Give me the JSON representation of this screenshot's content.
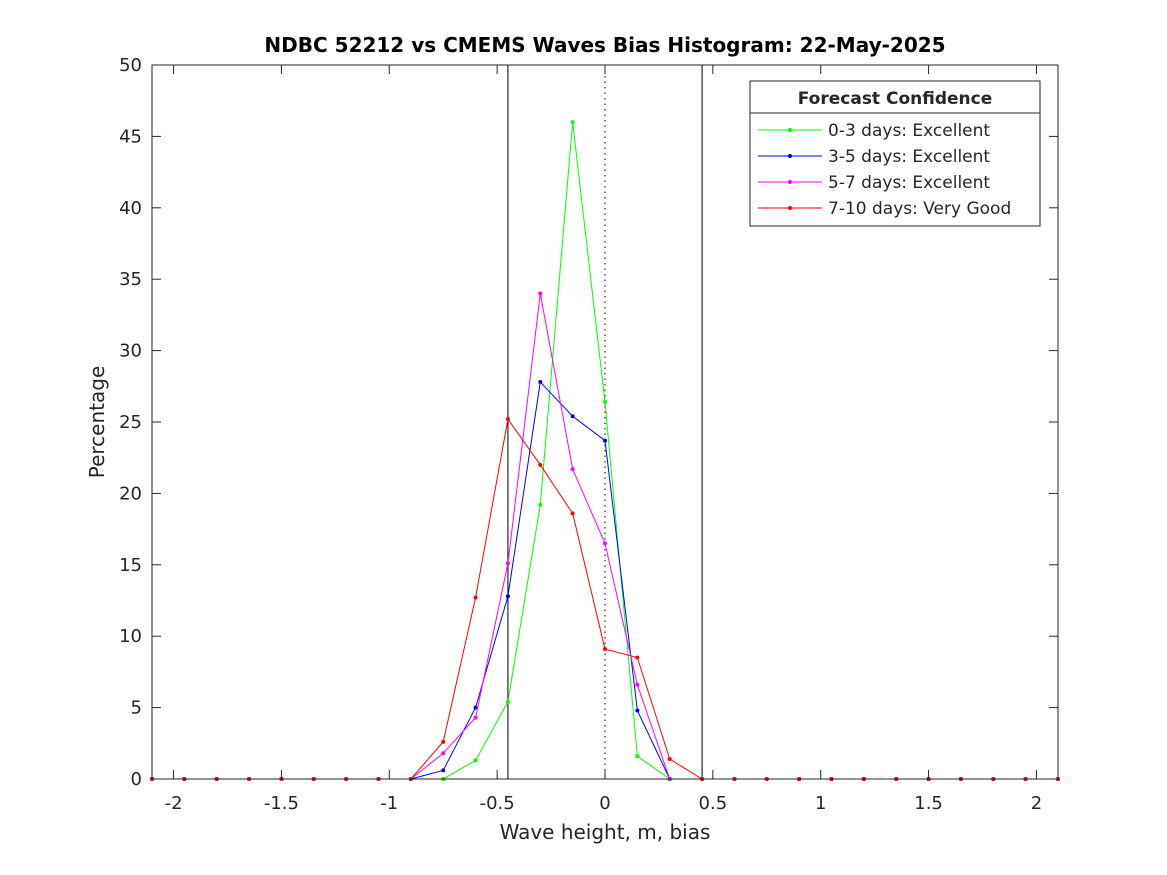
{
  "chart_data": {
    "type": "line",
    "title": "NDBC 52212 vs CMEMS Waves Bias Histogram: 22-May-2025",
    "xlabel": "Wave height, m, bias",
    "ylabel": "Percentage",
    "xlim": [
      -2.1,
      2.1
    ],
    "ylim": [
      0,
      50
    ],
    "xticks": [
      -2,
      -1.5,
      -1,
      -0.5,
      0,
      0.5,
      1,
      1.5,
      2
    ],
    "xtick_labels": [
      "-2",
      "-1.5",
      "-1",
      "-0.5",
      "0",
      "0.5",
      "1",
      "1.5",
      "2"
    ],
    "yticks": [
      0,
      5,
      10,
      15,
      20,
      25,
      30,
      35,
      40,
      45,
      50
    ],
    "ytick_labels": [
      "0",
      "5",
      "10",
      "15",
      "20",
      "25",
      "30",
      "35",
      "40",
      "45",
      "50"
    ],
    "reference_lines": [
      {
        "x": -0.45,
        "style": "solid"
      },
      {
        "x": 0,
        "style": "dotted"
      },
      {
        "x": 0.45,
        "style": "solid"
      }
    ],
    "legend_title": "Forecast Confidence",
    "legend_position": "top-right",
    "x": [
      -2.1,
      -1.95,
      -1.8,
      -1.65,
      -1.5,
      -1.35,
      -1.2,
      -1.05,
      -0.9,
      -0.75,
      -0.6,
      -0.45,
      -0.3,
      -0.15,
      0,
      0.15,
      0.3,
      0.45,
      0.6,
      0.75,
      0.9,
      1.05,
      1.2,
      1.35,
      1.5,
      1.65,
      1.8,
      1.95,
      2.1
    ],
    "series": [
      {
        "name": "0-3 days: Excellent",
        "color": "#00ff00",
        "values": [
          0,
          0,
          0,
          0,
          0,
          0,
          0,
          0,
          0,
          0,
          1.3,
          5.4,
          19.2,
          46.0,
          26.4,
          1.6,
          0,
          0,
          0,
          0,
          0,
          0,
          0,
          0,
          0,
          0,
          0,
          0,
          0
        ]
      },
      {
        "name": "3-5 days: Excellent",
        "color": "#0000ff",
        "values": [
          0,
          0,
          0,
          0,
          0,
          0,
          0,
          0,
          0,
          0.6,
          5.0,
          12.8,
          27.8,
          25.4,
          23.7,
          4.8,
          0,
          0,
          0,
          0,
          0,
          0,
          0,
          0,
          0,
          0,
          0,
          0,
          0
        ]
      },
      {
        "name": "5-7 days: Excellent",
        "color": "#ff00ff",
        "values": [
          0,
          0,
          0,
          0,
          0,
          0,
          0,
          0,
          0,
          1.8,
          4.3,
          15.1,
          34.0,
          21.7,
          16.5,
          6.6,
          0,
          0,
          0,
          0,
          0,
          0,
          0,
          0,
          0,
          0,
          0,
          0,
          0
        ]
      },
      {
        "name": "7-10 days: Very Good",
        "color": "#ff0000",
        "values": [
          0,
          0,
          0,
          0,
          0,
          0,
          0,
          0,
          0,
          2.6,
          12.7,
          25.2,
          22.0,
          18.6,
          9.1,
          8.5,
          1.4,
          0,
          0,
          0,
          0,
          0,
          0,
          0,
          0,
          0,
          0,
          0,
          0
        ]
      }
    ]
  }
}
